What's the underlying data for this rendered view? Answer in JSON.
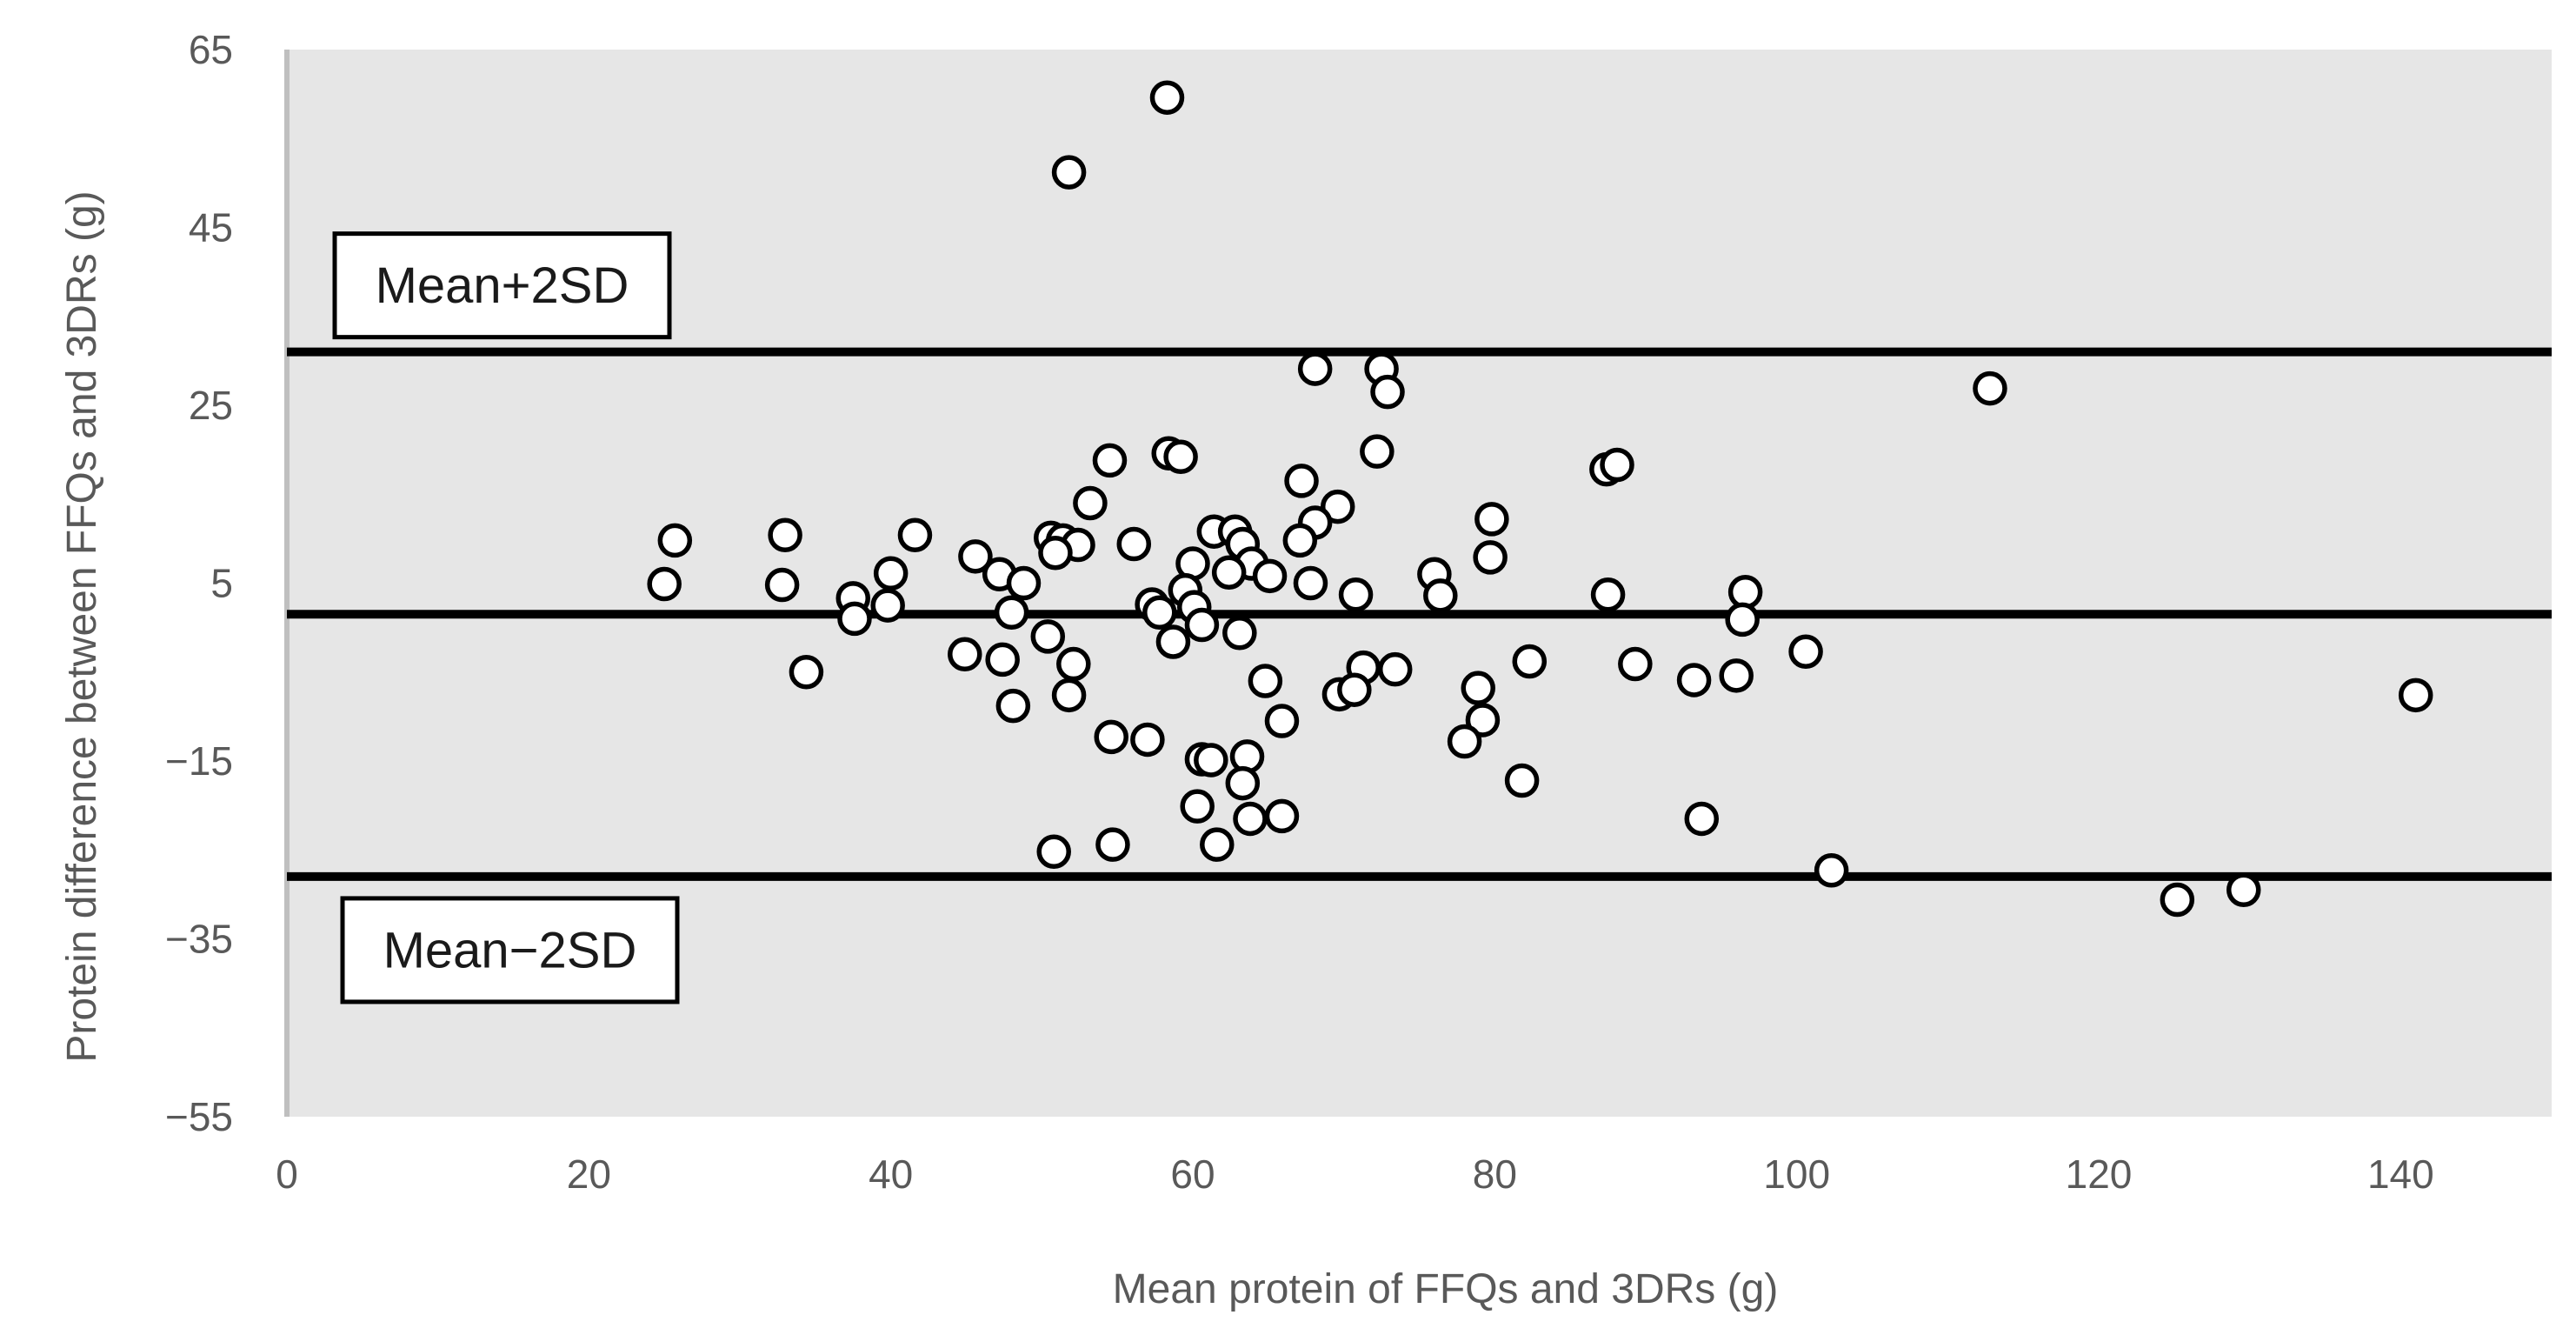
{
  "chart_data": {
    "type": "scatter",
    "title": "",
    "xlabel": "Mean protein of FFQs and 3DRs (g)",
    "ylabel": "Protein difference between FFQs and 3DRs (g)",
    "xlim": [
      0,
      150
    ],
    "ylim": [
      -55,
      65
    ],
    "x_ticks": [
      0,
      20,
      40,
      60,
      80,
      100,
      120,
      140
    ],
    "y_ticks": [
      65,
      45,
      25,
      5,
      -15,
      -35,
      -55
    ],
    "y_tick_labels": [
      "65",
      "45",
      "25",
      "5",
      "−15",
      "−35",
      "−55"
    ],
    "reference_lines": [
      {
        "name": "Mean+2SD",
        "label": "Mean+2SD",
        "y": 31.0
      },
      {
        "name": "Mean",
        "label": "",
        "y": 1.5
      },
      {
        "name": "Mean−2SD",
        "label": "Mean−2SD",
        "y": -28.0
      }
    ],
    "colors": {
      "plot_background": "#e6e6e6",
      "marker_fill": "#ffffff",
      "marker_edge": "#000000",
      "line": "#000000"
    },
    "points": [
      [
        58.3,
        59.6
      ],
      [
        51.8,
        51.2
      ],
      [
        112.8,
        26.9
      ],
      [
        68.1,
        29.1
      ],
      [
        72.5,
        29.1
      ],
      [
        72.9,
        26.5
      ],
      [
        54.5,
        18.8
      ],
      [
        58.4,
        19.6
      ],
      [
        59.2,
        19.2
      ],
      [
        72.2,
        19.8
      ],
      [
        87.4,
        17.8
      ],
      [
        88.1,
        18.3
      ],
      [
        67.2,
        16.5
      ],
      [
        69.6,
        13.6
      ],
      [
        53.2,
        14.0
      ],
      [
        79.8,
        12.2
      ],
      [
        68.1,
        11.8
      ],
      [
        41.6,
        10.4
      ],
      [
        33.0,
        10.4
      ],
      [
        25.7,
        9.8
      ],
      [
        50.6,
        10.1
      ],
      [
        51.4,
        9.8
      ],
      [
        52.4,
        9.3
      ],
      [
        56.1,
        9.4
      ],
      [
        61.4,
        10.8
      ],
      [
        62.8,
        10.8
      ],
      [
        63.3,
        9.4
      ],
      [
        67.1,
        9.8
      ],
      [
        50.9,
        8.4
      ],
      [
        45.6,
        8.0
      ],
      [
        60.0,
        7.2
      ],
      [
        63.9,
        7.2
      ],
      [
        62.4,
        6.2
      ],
      [
        65.1,
        5.8
      ],
      [
        67.8,
        5.0
      ],
      [
        79.7,
        7.9
      ],
      [
        40.0,
        6.1
      ],
      [
        47.2,
        6.0
      ],
      [
        48.8,
        5.0
      ],
      [
        25.0,
        4.9
      ],
      [
        32.8,
        4.8
      ],
      [
        59.5,
        4.2
      ],
      [
        70.8,
        3.7
      ],
      [
        76.0,
        6.0
      ],
      [
        76.4,
        3.6
      ],
      [
        87.5,
        3.7
      ],
      [
        96.6,
        4.0
      ],
      [
        37.5,
        3.3
      ],
      [
        39.8,
        2.5
      ],
      [
        57.3,
        2.6
      ],
      [
        57.8,
        1.7
      ],
      [
        60.1,
        2.3
      ],
      [
        48.0,
        1.7
      ],
      [
        37.6,
        1.0
      ],
      [
        96.4,
        0.9
      ],
      [
        60.6,
        0.3
      ],
      [
        58.7,
        -1.6
      ],
      [
        50.4,
        -1.0
      ],
      [
        63.1,
        -0.6
      ],
      [
        44.9,
        -3.0
      ],
      [
        47.4,
        -3.6
      ],
      [
        52.1,
        -4.1
      ],
      [
        34.4,
        -5.0
      ],
      [
        71.3,
        -4.5
      ],
      [
        73.4,
        -4.7
      ],
      [
        82.3,
        -3.8
      ],
      [
        89.3,
        -4.1
      ],
      [
        100.6,
        -2.7
      ],
      [
        64.8,
        -6.0
      ],
      [
        69.7,
        -7.5
      ],
      [
        70.7,
        -7.0
      ],
      [
        78.9,
        -6.8
      ],
      [
        93.2,
        -5.9
      ],
      [
        96.0,
        -5.4
      ],
      [
        141.0,
        -7.6
      ],
      [
        51.8,
        -7.6
      ],
      [
        48.1,
        -8.8
      ],
      [
        65.9,
        -10.5
      ],
      [
        79.2,
        -10.4
      ],
      [
        54.6,
        -12.3
      ],
      [
        57.0,
        -12.6
      ],
      [
        78.0,
        -12.8
      ],
      [
        60.6,
        -14.8
      ],
      [
        61.2,
        -14.9
      ],
      [
        63.6,
        -14.5
      ],
      [
        63.3,
        -17.5
      ],
      [
        81.8,
        -17.2
      ],
      [
        60.3,
        -20.1
      ],
      [
        63.8,
        -21.5
      ],
      [
        65.9,
        -21.2
      ],
      [
        93.7,
        -21.5
      ],
      [
        54.7,
        -24.4
      ],
      [
        50.8,
        -25.2
      ],
      [
        61.6,
        -24.4
      ],
      [
        102.3,
        -27.3
      ],
      [
        125.2,
        -30.6
      ],
      [
        129.6,
        -29.5
      ]
    ]
  }
}
